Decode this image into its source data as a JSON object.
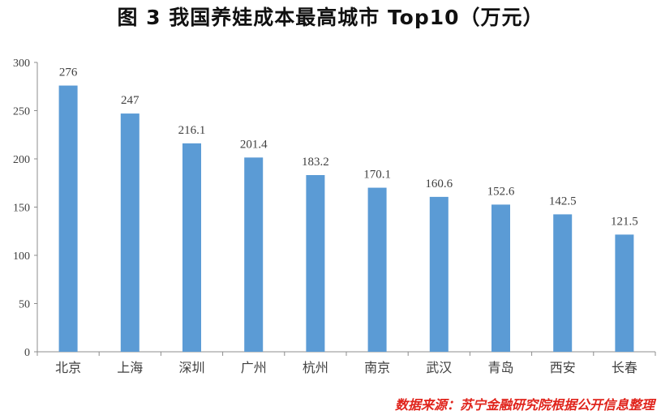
{
  "chart_data": {
    "type": "bar",
    "title": "图 3   我国养娃成本最高城市 Top10（万元）",
    "categories": [
      "北京",
      "上海",
      "深圳",
      "广州",
      "杭州",
      "南京",
      "武汉",
      "青岛",
      "西安",
      "长春"
    ],
    "values": [
      276,
      247,
      216.1,
      201.4,
      183.2,
      170.1,
      160.6,
      152.6,
      142.5,
      121.5
    ],
    "value_labels": [
      "276",
      "247",
      "216.1",
      "201.4",
      "183.2",
      "170.1",
      "160.6",
      "152.6",
      "142.5",
      "121.5"
    ],
    "ylim": [
      0,
      300
    ],
    "yticks": [
      0,
      50,
      100,
      150,
      200,
      250,
      300
    ],
    "xlabel": "",
    "ylabel": "",
    "grid": false,
    "legend": "none",
    "bar_color": "#5b9bd5"
  },
  "source_note": "数据来源：苏宁金融研究院根据公开信息整理"
}
